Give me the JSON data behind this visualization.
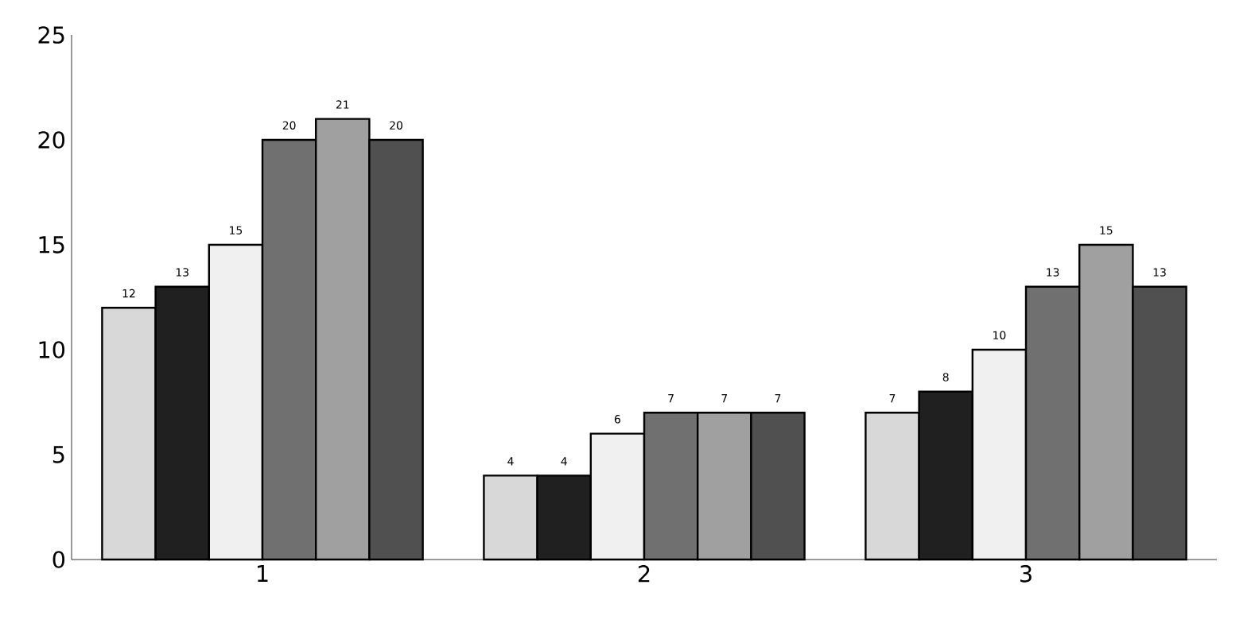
{
  "chart_data": {
    "type": "bar",
    "categories": [
      "1",
      "2",
      "3"
    ],
    "series": [
      {
        "color": "#d8d8d8",
        "values": [
          12,
          4,
          7
        ]
      },
      {
        "color": "#202020",
        "values": [
          13,
          4,
          8
        ]
      },
      {
        "color": "#f0f0f0",
        "values": [
          15,
          6,
          10
        ]
      },
      {
        "color": "#707070",
        "values": [
          20,
          7,
          13
        ]
      },
      {
        "color": "#a0a0a0",
        "values": [
          21,
          7,
          15
        ]
      },
      {
        "color": "#505050",
        "values": [
          20,
          7,
          13
        ]
      }
    ],
    "ylim": [
      0,
      25
    ],
    "yticks": [
      0,
      5,
      10,
      15,
      20,
      25
    ],
    "grid": false,
    "data_labels": true
  }
}
